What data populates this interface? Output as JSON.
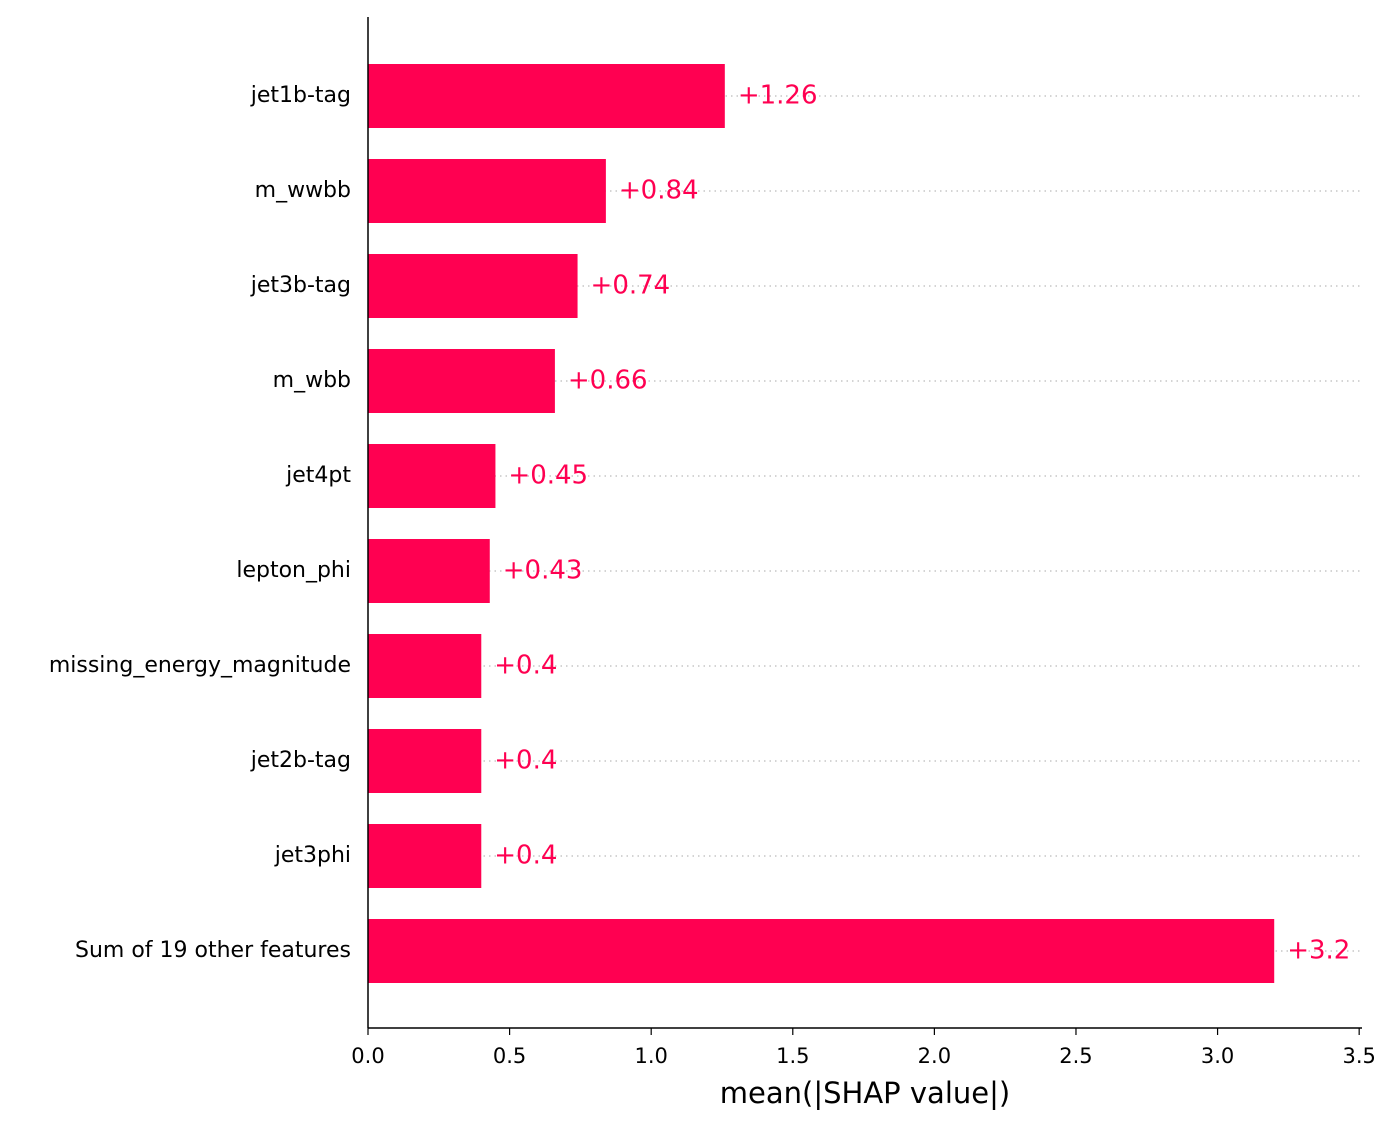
{
  "chart_data": {
    "type": "barh",
    "xlabel": "mean(|SHAP value|)",
    "categories": [
      "jet1b-tag",
      "m_wwbb",
      "jet3b-tag",
      "m_wbb",
      "jet4pt",
      "lepton_phi",
      "missing_energy_magnitude",
      "jet2b-tag",
      "jet3phi",
      "Sum of 19 other features"
    ],
    "values": [
      1.26,
      0.84,
      0.74,
      0.66,
      0.45,
      0.43,
      0.4,
      0.4,
      0.4,
      3.2
    ],
    "value_labels": [
      "+1.26",
      "+0.84",
      "+0.74",
      "+0.66",
      "+0.45",
      "+0.43",
      "+0.4",
      "+0.4",
      "+0.4",
      "+3.2"
    ],
    "color": "#ff0051",
    "xlim": [
      0,
      3.51
    ],
    "xticks": [
      {
        "value": 0,
        "label": "0.0"
      },
      0.5,
      {
        "value": 1,
        "label": "1.0"
      },
      1.5,
      {
        "value": 2,
        "label": "2.0"
      },
      2.5,
      {
        "value": 3,
        "label": "3.0"
      },
      3.5
    ]
  }
}
